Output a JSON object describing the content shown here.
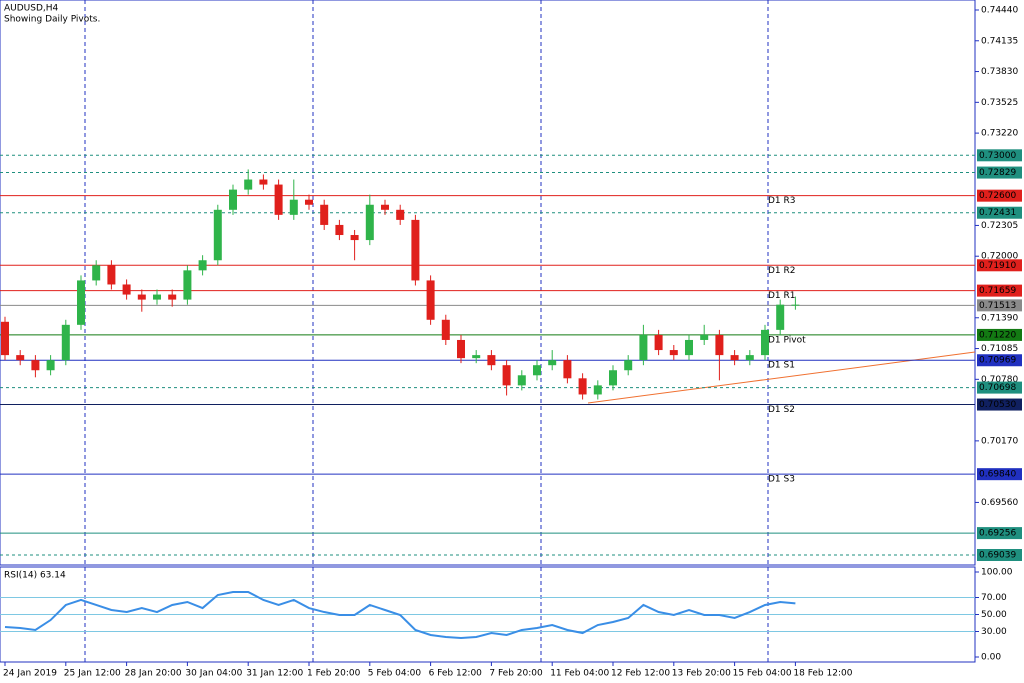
{
  "chart_data": {
    "type": "candlestick",
    "title": "AUDUSD,H4",
    "subtitle": "Showing Daily Pivots.",
    "categories": [
      "24 Jan 2019",
      null,
      null,
      null,
      "25 Jan 12:00",
      null,
      null,
      null,
      "28 Jan 20:00",
      null,
      null,
      null,
      "30 Jan 04:00",
      null,
      null,
      null,
      "31 Jan 12:00",
      null,
      null,
      null,
      "1 Feb 20:00",
      null,
      null,
      null,
      "5 Feb 04:00",
      null,
      null,
      null,
      "6 Feb 12:00",
      null,
      null,
      null,
      "7 Feb 20:00",
      null,
      null,
      null,
      "11 Feb 04:00",
      null,
      null,
      null,
      "12 Feb 12:00",
      null,
      null,
      null,
      "13 Feb 20:00",
      null,
      null,
      null,
      "15 Feb 04:00",
      null,
      null,
      null,
      "18 Feb 12:00"
    ],
    "open": [
      0.7135,
      0.7102,
      0.7097,
      0.7087,
      0.7097,
      0.7132,
      0.7176,
      0.7191,
      0.7172,
      0.7162,
      0.7157,
      0.7162,
      0.7157,
      0.7186,
      0.7196,
      0.7246,
      0.7266,
      0.7276,
      0.7271,
      0.7241,
      0.7256,
      0.7251,
      0.7231,
      0.7221,
      0.7216,
      0.7251,
      0.7246,
      0.7236,
      0.7176,
      0.7137,
      0.7117,
      0.7099,
      0.7102,
      0.7092,
      0.7072,
      0.7082,
      0.7092,
      0.7097,
      0.7079,
      0.7063,
      0.7072,
      0.7087,
      0.7097,
      0.7122,
      0.7107,
      0.7102,
      0.7117,
      0.7122,
      0.7102,
      0.7097,
      0.7102,
      0.7127,
      0.7152
    ],
    "high": [
      0.714,
      0.7107,
      0.7102,
      0.7102,
      0.7137,
      0.7181,
      0.7196,
      0.7196,
      0.7177,
      0.7167,
      0.7167,
      0.7167,
      0.7191,
      0.7201,
      0.7251,
      0.7271,
      0.7286,
      0.7281,
      0.7276,
      0.7276,
      0.7261,
      0.7256,
      0.7236,
      0.7226,
      0.7261,
      0.7256,
      0.7251,
      0.7241,
      0.7181,
      0.7142,
      0.7122,
      0.7107,
      0.7107,
      0.7097,
      0.7087,
      0.7097,
      0.7107,
      0.7102,
      0.7084,
      0.7077,
      0.7092,
      0.7102,
      0.7132,
      0.7127,
      0.7112,
      0.7122,
      0.7132,
      0.7127,
      0.7107,
      0.7107,
      0.7132,
      0.7157,
      0.716
    ],
    "low": [
      0.7097,
      0.7092,
      0.708,
      0.7082,
      0.7092,
      0.7127,
      0.7171,
      0.7167,
      0.7157,
      0.7145,
      0.7152,
      0.715,
      0.7152,
      0.7181,
      0.7191,
      0.7241,
      0.7261,
      0.7266,
      0.7236,
      0.7236,
      0.7246,
      0.7226,
      0.7216,
      0.7196,
      0.7211,
      0.7241,
      0.7231,
      0.7171,
      0.7132,
      0.7112,
      0.7094,
      0.7094,
      0.7087,
      0.7062,
      0.7067,
      0.7077,
      0.7087,
      0.7074,
      0.7058,
      0.7058,
      0.7067,
      0.7082,
      0.7092,
      0.7102,
      0.7097,
      0.7097,
      0.7112,
      0.7077,
      0.7092,
      0.7092,
      0.7097,
      0.7122,
      0.7147
    ],
    "close": [
      0.7102,
      0.7097,
      0.7087,
      0.7097,
      0.7132,
      0.7176,
      0.7191,
      0.7172,
      0.7162,
      0.7157,
      0.7162,
      0.7157,
      0.7186,
      0.7196,
      0.7246,
      0.7266,
      0.7276,
      0.7271,
      0.7241,
      0.7256,
      0.7251,
      0.7231,
      0.7221,
      0.7216,
      0.7251,
      0.7246,
      0.7236,
      0.7176,
      0.7137,
      0.7117,
      0.7099,
      0.7102,
      0.7092,
      0.7072,
      0.7082,
      0.7092,
      0.7097,
      0.7079,
      0.7063,
      0.7072,
      0.7087,
      0.7097,
      0.7122,
      0.7107,
      0.7102,
      0.7117,
      0.7122,
      0.7102,
      0.7097,
      0.7102,
      0.7127,
      0.7152,
      0.7152
    ],
    "up_color": "#2fb44a",
    "down_color": "#e0201c",
    "ylim": [
      0.69039,
      0.7444
    ],
    "yticks": [
      {
        "value": 0.7444,
        "label": "0.74440"
      },
      {
        "value": 0.74135,
        "label": "0.74135"
      },
      {
        "value": 0.7383,
        "label": "0.73830"
      },
      {
        "value": 0.73525,
        "label": "0.73525"
      },
      {
        "value": 0.7322,
        "label": "0.73220"
      },
      {
        "value": 0.72305,
        "label": "0.72305"
      },
      {
        "value": 0.72,
        "label": "0.72000"
      },
      {
        "value": 0.7139,
        "label": "0.71390"
      },
      {
        "value": 0.71085,
        "label": "0.71085"
      },
      {
        "value": 0.7078,
        "label": "0.70780"
      },
      {
        "value": 0.7017,
        "label": "0.70170"
      },
      {
        "value": 0.6956,
        "label": "0.69560"
      }
    ],
    "levels": [
      {
        "value": 0.73,
        "label": "0.73000",
        "color": "#1f8f7f",
        "style": "dashed"
      },
      {
        "value": 0.72829,
        "label": "0.72829",
        "color": "#1f8f7f",
        "style": "dashed"
      },
      {
        "value": 0.726,
        "label": "0.72600",
        "color": "#e0201c",
        "style": "solid",
        "name": "D1 R3"
      },
      {
        "value": 0.72431,
        "label": "0.72431",
        "color": "#1f8f7f",
        "style": "dashed"
      },
      {
        "value": 0.7191,
        "label": "0.71910",
        "color": "#e0201c",
        "style": "solid",
        "name": "D1 R2"
      },
      {
        "value": 0.71659,
        "label": "0.71659",
        "color": "#e0201c",
        "style": "solid",
        "name": "D1 R1"
      },
      {
        "value": 0.71513,
        "label": "0.71513",
        "color": "#8a8a8a",
        "style": "solid"
      },
      {
        "value": 0.7122,
        "label": "0.71220",
        "color": "#137a13",
        "style": "solid",
        "name": "D1 Pivot"
      },
      {
        "value": 0.70969,
        "label": "0.70969",
        "color": "#2030c0",
        "style": "solid",
        "name": "D1 S1"
      },
      {
        "value": 0.70698,
        "label": "0.70698",
        "color": "#1f8f7f",
        "style": "dashed"
      },
      {
        "value": 0.7053,
        "label": "0.70530",
        "color": "#102060",
        "style": "solid",
        "name": "D1 S2"
      },
      {
        "value": 0.6984,
        "label": "0.69840",
        "color": "#2030c0",
        "style": "solid",
        "name": "D1 S3"
      },
      {
        "value": 0.69256,
        "label": "0.69256",
        "color": "#1f8f7f",
        "style": "solid"
      },
      {
        "value": 0.69039,
        "label": "0.69039",
        "color": "#1f8f7f",
        "style": "dashed"
      }
    ],
    "rsi": {
      "title": "RSI(14) 63.14",
      "color": "#3a8ee6",
      "values": [
        35.3,
        34.1,
        31.8,
        43.5,
        61.2,
        67.1,
        61.2,
        55.3,
        52.9,
        57.6,
        52.9,
        61.2,
        64.7,
        57.6,
        72.9,
        76.5,
        76.5,
        67.1,
        61.2,
        67.1,
        57.6,
        52.9,
        49.4,
        49.4,
        61.2,
        55.3,
        49.4,
        31.8,
        25.9,
        23.5,
        22.4,
        23.5,
        28.2,
        25.9,
        31.8,
        34.1,
        37.6,
        31.8,
        28.2,
        37.6,
        41.2,
        45.9,
        61.2,
        52.9,
        49.4,
        55.3,
        49.4,
        49.4,
        45.9,
        52.9,
        61.2,
        64.7,
        63.14
      ],
      "ylim": [
        0,
        100
      ],
      "yticks": [
        {
          "value": 100,
          "label": "100.00"
        },
        {
          "value": 70,
          "label": "70.00"
        },
        {
          "value": 50,
          "label": "50.00"
        },
        {
          "value": 30,
          "label": "30.00"
        },
        {
          "value": 0,
          "label": "0.00"
        }
      ],
      "levels": [
        70,
        50,
        30
      ]
    }
  }
}
